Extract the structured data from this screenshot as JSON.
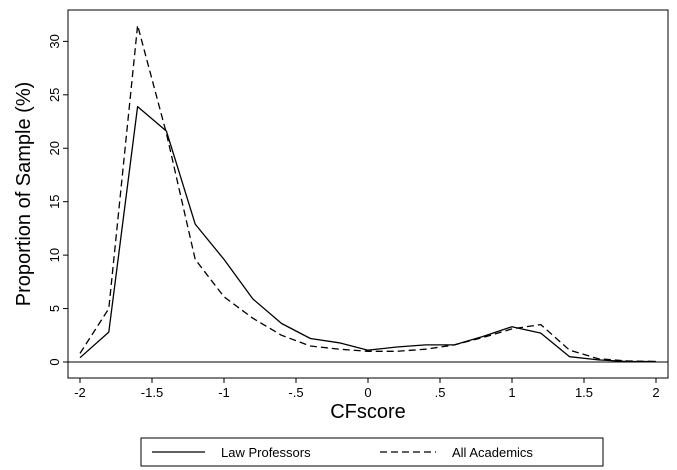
{
  "chart_data": {
    "type": "line",
    "title": "",
    "xlabel": "CFscore",
    "ylabel": "Proportion of Sample (%)",
    "xlim": [
      -2.0,
      2.0
    ],
    "ylim": [
      0,
      32
    ],
    "x_ticks": [
      -2,
      -1.5,
      -1,
      -0.5,
      0,
      0.5,
      1,
      1.5,
      2
    ],
    "x_tick_labels": [
      "-2",
      "-1.5",
      "-1",
      "-.5",
      "0",
      ".5",
      "1",
      "1.5",
      "2"
    ],
    "y_ticks": [
      0,
      5,
      10,
      15,
      20,
      25,
      30
    ],
    "y_tick_labels": [
      "0",
      "5",
      "10",
      "15",
      "20",
      "25",
      "30"
    ],
    "grid": false,
    "legend_position": "bottom",
    "x": [
      -2.0,
      -1.8,
      -1.6,
      -1.4,
      -1.2,
      -1.0,
      -0.8,
      -0.6,
      -0.4,
      -0.2,
      0.0,
      0.2,
      0.4,
      0.6,
      0.8,
      1.0,
      1.2,
      1.4,
      1.6,
      1.8,
      2.0
    ],
    "series": [
      {
        "name": "Law Professors",
        "style": "solid",
        "values": [
          0.4,
          2.8,
          23.9,
          21.6,
          12.9,
          9.6,
          5.9,
          3.6,
          2.2,
          1.8,
          1.1,
          1.4,
          1.6,
          1.6,
          2.4,
          3.3,
          2.7,
          0.5,
          0.2,
          0.05,
          0.05
        ]
      },
      {
        "name": "All Academics",
        "style": "dashed",
        "values": [
          0.8,
          5.0,
          31.5,
          21.4,
          9.6,
          6.1,
          4.1,
          2.5,
          1.5,
          1.2,
          1.0,
          1.0,
          1.2,
          1.6,
          2.3,
          3.1,
          3.5,
          1.1,
          0.3,
          0.1,
          0.05
        ]
      }
    ]
  }
}
